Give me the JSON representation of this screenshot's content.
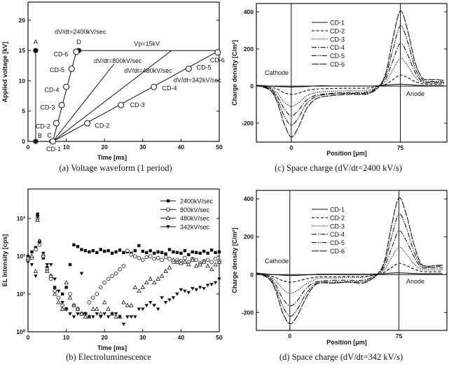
{
  "chart_data": [
    {
      "id": "a",
      "type": "line",
      "caption": "(a) Voltage waveform (1 period)",
      "xlabel": "Time [ms]",
      "ylabel": "Applied voltage [kV]",
      "xlim": [
        0,
        50
      ],
      "ylim": [
        0,
        23
      ],
      "xticks": [
        0,
        10,
        20,
        30,
        40,
        50
      ],
      "yticks": [
        0,
        5,
        10,
        15,
        20
      ],
      "lines": [
        {
          "name": "A-B",
          "points": [
            [
              2,
              0
            ],
            [
              2,
              15
            ]
          ]
        },
        {
          "name": "dV/dt=2400kV/sec",
          "points": [
            [
              6.5,
              0
            ],
            [
              12.6,
              14.8
            ]
          ]
        },
        {
          "name": "Vp=15kV",
          "points": [
            [
              13,
              15
            ],
            [
              50,
              15
            ]
          ]
        },
        {
          "name": "dV/dt=800kV/sec",
          "points": [
            [
              6.5,
              0
            ],
            [
              22.5,
              12.8
            ]
          ]
        },
        {
          "name": "dV/dt=480kV/sec",
          "points": [
            [
              6.5,
              0
            ],
            [
              37.5,
              15
            ]
          ]
        },
        {
          "name": "dV/dt=342kV/sec",
          "points": [
            [
              6.5,
              0
            ],
            [
              50,
              15
            ]
          ]
        }
      ],
      "filled_points": [
        [
          2,
          15
        ],
        [
          2,
          0
        ],
        [
          6.2,
          0
        ],
        [
          13.3,
          15
        ]
      ],
      "open_points": [
        [
          6.5,
          0
        ],
        [
          7.4,
          3
        ],
        [
          8.8,
          6
        ],
        [
          10,
          9
        ],
        [
          11.4,
          12
        ],
        [
          12.6,
          14.8
        ],
        [
          15.5,
          3
        ],
        [
          24.3,
          6
        ],
        [
          32.9,
          9
        ],
        [
          42,
          12
        ],
        [
          49.6,
          14.7
        ]
      ],
      "annotations": [
        "A",
        "B",
        "C",
        "D",
        "dV/dt=2400kV/sec",
        "Vp=15kV",
        "dV/dt=800kV/sec",
        "dV/dt=480kV/sec",
        "dV/dt=342kV/sec",
        "CD-6",
        "CD-5",
        "CD-4",
        "CD-3",
        "CD-2",
        "CD-1",
        "CD-2",
        "CD-3",
        "CD-4",
        "CD-5",
        "CD-6"
      ]
    },
    {
      "id": "b",
      "type": "scatter",
      "caption": "(b) Electroluminescence",
      "xlabel": "Time [ms]",
      "ylabel": "EL Intensity [cps]",
      "yscale": "log",
      "xlim": [
        0,
        50
      ],
      "ylim": [
        1,
        6000
      ],
      "xticks": [
        0,
        10,
        20,
        30,
        40,
        50
      ],
      "yticks": [
        1,
        10,
        100,
        1000
      ],
      "yticklabels": [
        "10⁰",
        "10¹",
        "10²",
        "10³"
      ],
      "legend_position": "top-right",
      "x": [
        0,
        1,
        2,
        2.5,
        3,
        4,
        5,
        6,
        7,
        8,
        9,
        10,
        11,
        12,
        13,
        14,
        15,
        16,
        17,
        18,
        19,
        20,
        21,
        22,
        23,
        24,
        25,
        26,
        27,
        28,
        29,
        30,
        31,
        32,
        33,
        34,
        35,
        36,
        37,
        38,
        39,
        40,
        41,
        42,
        43,
        44,
        45,
        46,
        47,
        48,
        49,
        50
      ],
      "series": [
        {
          "name": "2400kV/sec",
          "marker": "square-filled",
          "values": [
            100,
            130,
            170,
            1300,
            250,
            90,
            50,
            30,
            15,
            8,
            10,
            15,
            60,
            200,
            180,
            150,
            140,
            130,
            140,
            125,
            150,
            135,
            140,
            120,
            130,
            145,
            125,
            130,
            120,
            140,
            190,
            135,
            125,
            140,
            120,
            130,
            125,
            115,
            150,
            130,
            125,
            120,
            140,
            110,
            130,
            125,
            120,
            135,
            120,
            145,
            125,
            130
          ]
        },
        {
          "name": "800kV/sec",
          "marker": "circle-open",
          "values": [
            80,
            90,
            150,
            1000,
            200,
            100,
            45,
            25,
            12,
            8,
            5,
            4,
            10,
            5,
            4,
            3,
            3,
            6,
            8,
            10,
            15,
            20,
            25,
            30,
            35,
            45,
            55,
            140,
            110,
            100,
            90,
            80,
            95,
            100,
            85,
            90,
            80,
            95,
            85,
            70,
            80,
            75,
            90,
            70,
            85,
            80,
            65,
            75,
            80,
            70,
            85,
            75
          ]
        },
        {
          "name": "480kV/sec",
          "marker": "triangle-up-open",
          "values": [
            90,
            100,
            40,
            900,
            250,
            110,
            40,
            30,
            10,
            6,
            4,
            20,
            8,
            5,
            4,
            3,
            2.5,
            2.5,
            4,
            4,
            3,
            6,
            4,
            3,
            2.5,
            2.5,
            6,
            5,
            5,
            15,
            12,
            15,
            20,
            25,
            20,
            25,
            30,
            40,
            50,
            80,
            70,
            65,
            70,
            60,
            80,
            55,
            60,
            70,
            55,
            45,
            60,
            70
          ]
        },
        {
          "name": "342kV/sec",
          "marker": "triangle-down-filled",
          "values": [
            70,
            60,
            30,
            1100,
            230,
            120,
            60,
            60,
            25,
            12,
            6,
            4,
            3,
            2.5,
            3,
            35,
            3,
            2.5,
            2.5,
            3,
            2.5,
            3,
            2.5,
            3,
            3,
            2.5,
            1.6,
            2.5,
            2.5,
            2.5,
            4,
            4,
            5,
            6,
            5,
            4,
            8,
            6,
            7,
            8,
            10,
            13,
            12,
            11,
            14,
            13,
            15,
            14,
            17,
            18,
            20,
            25
          ]
        }
      ]
    },
    {
      "id": "c",
      "type": "line",
      "caption": "(c) Space charge (dV/dt=2400 kV/s)",
      "xlabel": "Position [μm]",
      "ylabel": "Charge density [C/m²]",
      "xlim": [
        -24,
        107
      ],
      "ylim": [
        -302,
        445
      ],
      "xticks": [
        0,
        75
      ],
      "yticks": [
        -200,
        0,
        200,
        400
      ],
      "electrode_labels": {
        "cathode": "Cathode",
        "anode": "Anode"
      },
      "legend_position": "top-left",
      "x": [
        -25,
        -15,
        -10,
        -5,
        0,
        5,
        10,
        15,
        20,
        30,
        40,
        50,
        55,
        60,
        65,
        70,
        75,
        80,
        85,
        90,
        95,
        100,
        105
      ],
      "series": [
        {
          "name": "CD-1",
          "style": "solid",
          "values": [
            5,
            0,
            -2,
            -4,
            -5,
            -4,
            -3,
            0,
            2,
            0,
            0,
            0,
            0,
            2,
            5,
            8,
            10,
            8,
            5,
            3,
            2,
            2,
            2
          ]
        },
        {
          "name": "CD-2",
          "style": "dash",
          "values": [
            5,
            -5,
            -15,
            -35,
            -45,
            -38,
            -25,
            -18,
            -15,
            -13,
            -12,
            -12,
            -8,
            0,
            10,
            35,
            60,
            45,
            25,
            12,
            10,
            10,
            10
          ]
        },
        {
          "name": "CD-3",
          "style": "dot",
          "values": [
            5,
            -8,
            -35,
            -85,
            -110,
            -90,
            -55,
            -40,
            -32,
            -28,
            -25,
            -25,
            -18,
            0,
            25,
            90,
            150,
            110,
            50,
            20,
            15,
            15,
            15
          ]
        },
        {
          "name": "CD-4",
          "style": "dash-dot",
          "values": [
            5,
            -12,
            -50,
            -120,
            -160,
            -130,
            -80,
            -55,
            -45,
            -38,
            -35,
            -35,
            -25,
            -3,
            40,
            140,
            230,
            170,
            75,
            25,
            20,
            20,
            18
          ]
        },
        {
          "name": "CD-5",
          "style": "dash-dot-dot",
          "values": [
            5,
            -15,
            -65,
            -160,
            -210,
            -170,
            -100,
            -65,
            -50,
            -42,
            -40,
            -40,
            -30,
            -5,
            55,
            200,
            325,
            240,
            100,
            35,
            25,
            25,
            22
          ]
        },
        {
          "name": "CD-6",
          "style": "long-dash",
          "values": [
            5,
            -20,
            -80,
            -200,
            -275,
            -220,
            -130,
            -80,
            -60,
            -50,
            -45,
            -45,
            -35,
            -5,
            70,
            260,
            405,
            300,
            130,
            45,
            35,
            35,
            30
          ]
        }
      ]
    },
    {
      "id": "d",
      "type": "line",
      "caption": "(d) Space charge (dV/dt=342 kV/s)",
      "xlabel": "Position [μm]",
      "ylabel": "Charge density [C/m²]",
      "xlim": [
        -23,
        108
      ],
      "ylim": [
        -295,
        445
      ],
      "xticks": [
        0,
        75
      ],
      "yticks": [
        -200,
        0,
        200,
        400
      ],
      "electrode_labels": {
        "cathode": "Cathode",
        "anode": "Anode"
      },
      "legend_position": "top-left",
      "x": [
        -25,
        -15,
        -10,
        -5,
        0,
        5,
        10,
        15,
        20,
        30,
        40,
        50,
        55,
        60,
        65,
        70,
        75,
        80,
        85,
        90,
        95,
        100,
        105
      ],
      "series": [
        {
          "name": "CD-1",
          "style": "solid",
          "values": [
            10,
            2,
            0,
            -3,
            -5,
            -4,
            -2,
            0,
            2,
            2,
            2,
            2,
            2,
            3,
            5,
            8,
            10,
            8,
            6,
            5,
            5,
            5,
            5
          ]
        },
        {
          "name": "CD-2",
          "style": "dash",
          "values": [
            12,
            -5,
            -15,
            -32,
            -40,
            -35,
            -25,
            -18,
            -12,
            -12,
            -10,
            -10,
            -6,
            0,
            12,
            38,
            60,
            48,
            30,
            18,
            15,
            15,
            15
          ]
        },
        {
          "name": "CD-3",
          "style": "dot",
          "values": [
            12,
            -8,
            -30,
            -75,
            -100,
            -85,
            -55,
            -35,
            -20,
            -18,
            -15,
            -15,
            -10,
            0,
            25,
            90,
            145,
            110,
            60,
            30,
            25,
            25,
            25
          ]
        },
        {
          "name": "CD-4",
          "style": "dash-dot",
          "values": [
            12,
            -10,
            -50,
            -125,
            -165,
            -140,
            -85,
            -50,
            -35,
            -30,
            -30,
            -30,
            -20,
            0,
            40,
            140,
            230,
            180,
            100,
            40,
            35,
            35,
            35
          ]
        },
        {
          "name": "CD-5",
          "style": "dash-dot-dot",
          "values": [
            12,
            -15,
            -65,
            -165,
            -220,
            -185,
            -115,
            -65,
            -40,
            -40,
            -38,
            -38,
            -25,
            0,
            55,
            200,
            320,
            250,
            130,
            50,
            40,
            42,
            45
          ]
        },
        {
          "name": "CD-6",
          "style": "long-dash",
          "values": [
            12,
            -18,
            -80,
            -200,
            -260,
            -220,
            -140,
            -75,
            -45,
            -45,
            -40,
            -45,
            -30,
            0,
            70,
            260,
            405,
            320,
            170,
            60,
            45,
            48,
            50
          ]
        }
      ]
    }
  ]
}
